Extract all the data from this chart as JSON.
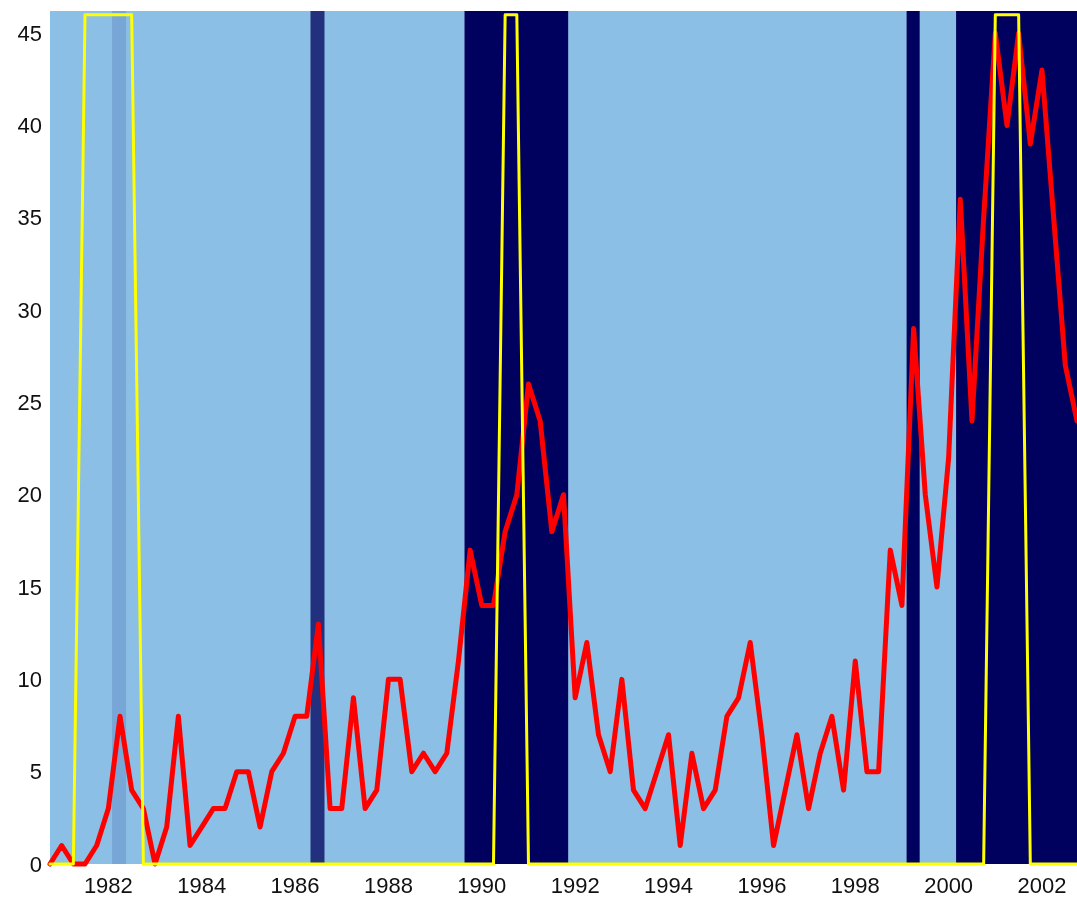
{
  "chart_data": {
    "type": "line",
    "xlim": [
      1980.75,
      2002.75
    ],
    "xticks": [
      1982,
      1984,
      1986,
      1988,
      1990,
      1992,
      1994,
      1996,
      1998,
      2000,
      2002
    ],
    "ylim": [
      0,
      46.2
    ],
    "yticks": [
      0,
      5,
      10,
      15,
      20,
      25,
      30,
      35,
      40,
      45
    ],
    "x": [
      1980.75,
      1981,
      1981.25,
      1981.5,
      1981.75,
      1982,
      1982.25,
      1982.5,
      1982.75,
      1983,
      1983.25,
      1983.5,
      1983.75,
      1984,
      1984.25,
      1984.5,
      1984.75,
      1985,
      1985.25,
      1985.5,
      1985.75,
      1986,
      1986.25,
      1986.5,
      1986.75,
      1987,
      1987.25,
      1987.5,
      1987.75,
      1988,
      1988.25,
      1988.5,
      1988.75,
      1989,
      1989.25,
      1989.5,
      1989.75,
      1990,
      1990.25,
      1990.5,
      1990.75,
      1991,
      1991.25,
      1991.5,
      1991.75,
      1992,
      1992.25,
      1992.5,
      1992.75,
      1993,
      1993.25,
      1993.5,
      1993.75,
      1994,
      1994.25,
      1994.5,
      1994.75,
      1995,
      1995.25,
      1995.5,
      1995.75,
      1996,
      1996.25,
      1996.5,
      1996.75,
      1997,
      1997.25,
      1997.5,
      1997.75,
      1998,
      1998.25,
      1998.5,
      1998.75,
      1999,
      1999.25,
      1999.5,
      1999.75,
      2000,
      2000.25,
      2000.5,
      2000.75,
      2001,
      2001.25,
      2001.5,
      2001.75,
      2002,
      2002.25,
      2002.5,
      2002.75
    ],
    "series": [
      {
        "color": "#ff0000",
        "values": [
          0,
          1,
          0,
          0,
          1,
          3,
          8,
          4,
          3,
          0,
          2,
          8,
          1,
          2,
          3,
          3,
          5,
          5,
          2,
          5,
          6,
          8,
          8,
          13,
          3,
          3,
          9,
          3,
          4,
          10,
          10,
          5,
          6,
          5,
          6,
          11,
          17,
          14,
          14,
          18,
          20,
          26,
          24,
          18,
          20,
          9,
          12,
          7,
          5,
          10,
          4,
          3,
          5,
          7,
          1,
          6,
          3,
          4,
          8,
          9,
          12,
          7,
          1,
          4,
          7,
          3,
          6,
          8,
          4,
          11,
          5,
          5,
          17,
          14,
          29,
          20,
          15,
          22,
          36,
          24,
          35,
          45,
          40,
          45,
          39,
          43,
          35,
          27,
          24
        ]
      },
      {
        "color": "#ffff00",
        "values": [
          0,
          0,
          0,
          46,
          46,
          46,
          46,
          46,
          0,
          0,
          0,
          0,
          0,
          0,
          0,
          0,
          0,
          0,
          0,
          0,
          0,
          0,
          0,
          0,
          0,
          0,
          0,
          0,
          0,
          0,
          0,
          0,
          0,
          0,
          0,
          0,
          0,
          0,
          0,
          46,
          46,
          0,
          0,
          0,
          0,
          0,
          0,
          0,
          0,
          0,
          0,
          0,
          0,
          0,
          0,
          0,
          0,
          0,
          0,
          0,
          0,
          0,
          0,
          0,
          0,
          0,
          0,
          0,
          0,
          0,
          0,
          0,
          0,
          0,
          0,
          0,
          0,
          0,
          0,
          0,
          0,
          46,
          46,
          46,
          0,
          0,
          0,
          0,
          0
        ]
      }
    ],
    "bands": [
      {
        "axis": "x",
        "from": 1982.08,
        "to": 1982.38,
        "color": "#78a6d6"
      },
      {
        "axis": "x",
        "from": 1986.33,
        "to": 1986.63,
        "color": "#23307e"
      },
      {
        "axis": "x",
        "from": 1989.63,
        "to": 1991.85,
        "color": "#00005e"
      },
      {
        "axis": "x",
        "from": 1999.1,
        "to": 1999.38,
        "color": "#00005e"
      },
      {
        "axis": "x",
        "from": 2000.16,
        "to": 2002.75,
        "color": "#00005e"
      }
    ]
  }
}
